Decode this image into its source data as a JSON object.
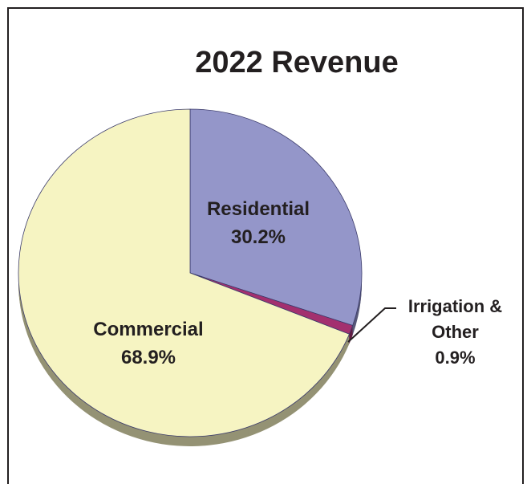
{
  "chart_data": {
    "type": "pie",
    "title": "2022 Revenue",
    "categories": [
      "Residential",
      "Irrigation & Other",
      "Commercial"
    ],
    "values": [
      30.2,
      0.9,
      68.9
    ],
    "value_labels": [
      "30.2%",
      "0.9%",
      "68.9%"
    ],
    "colors": [
      "#9496c9",
      "#a3306f",
      "#f6f4c2"
    ]
  }
}
